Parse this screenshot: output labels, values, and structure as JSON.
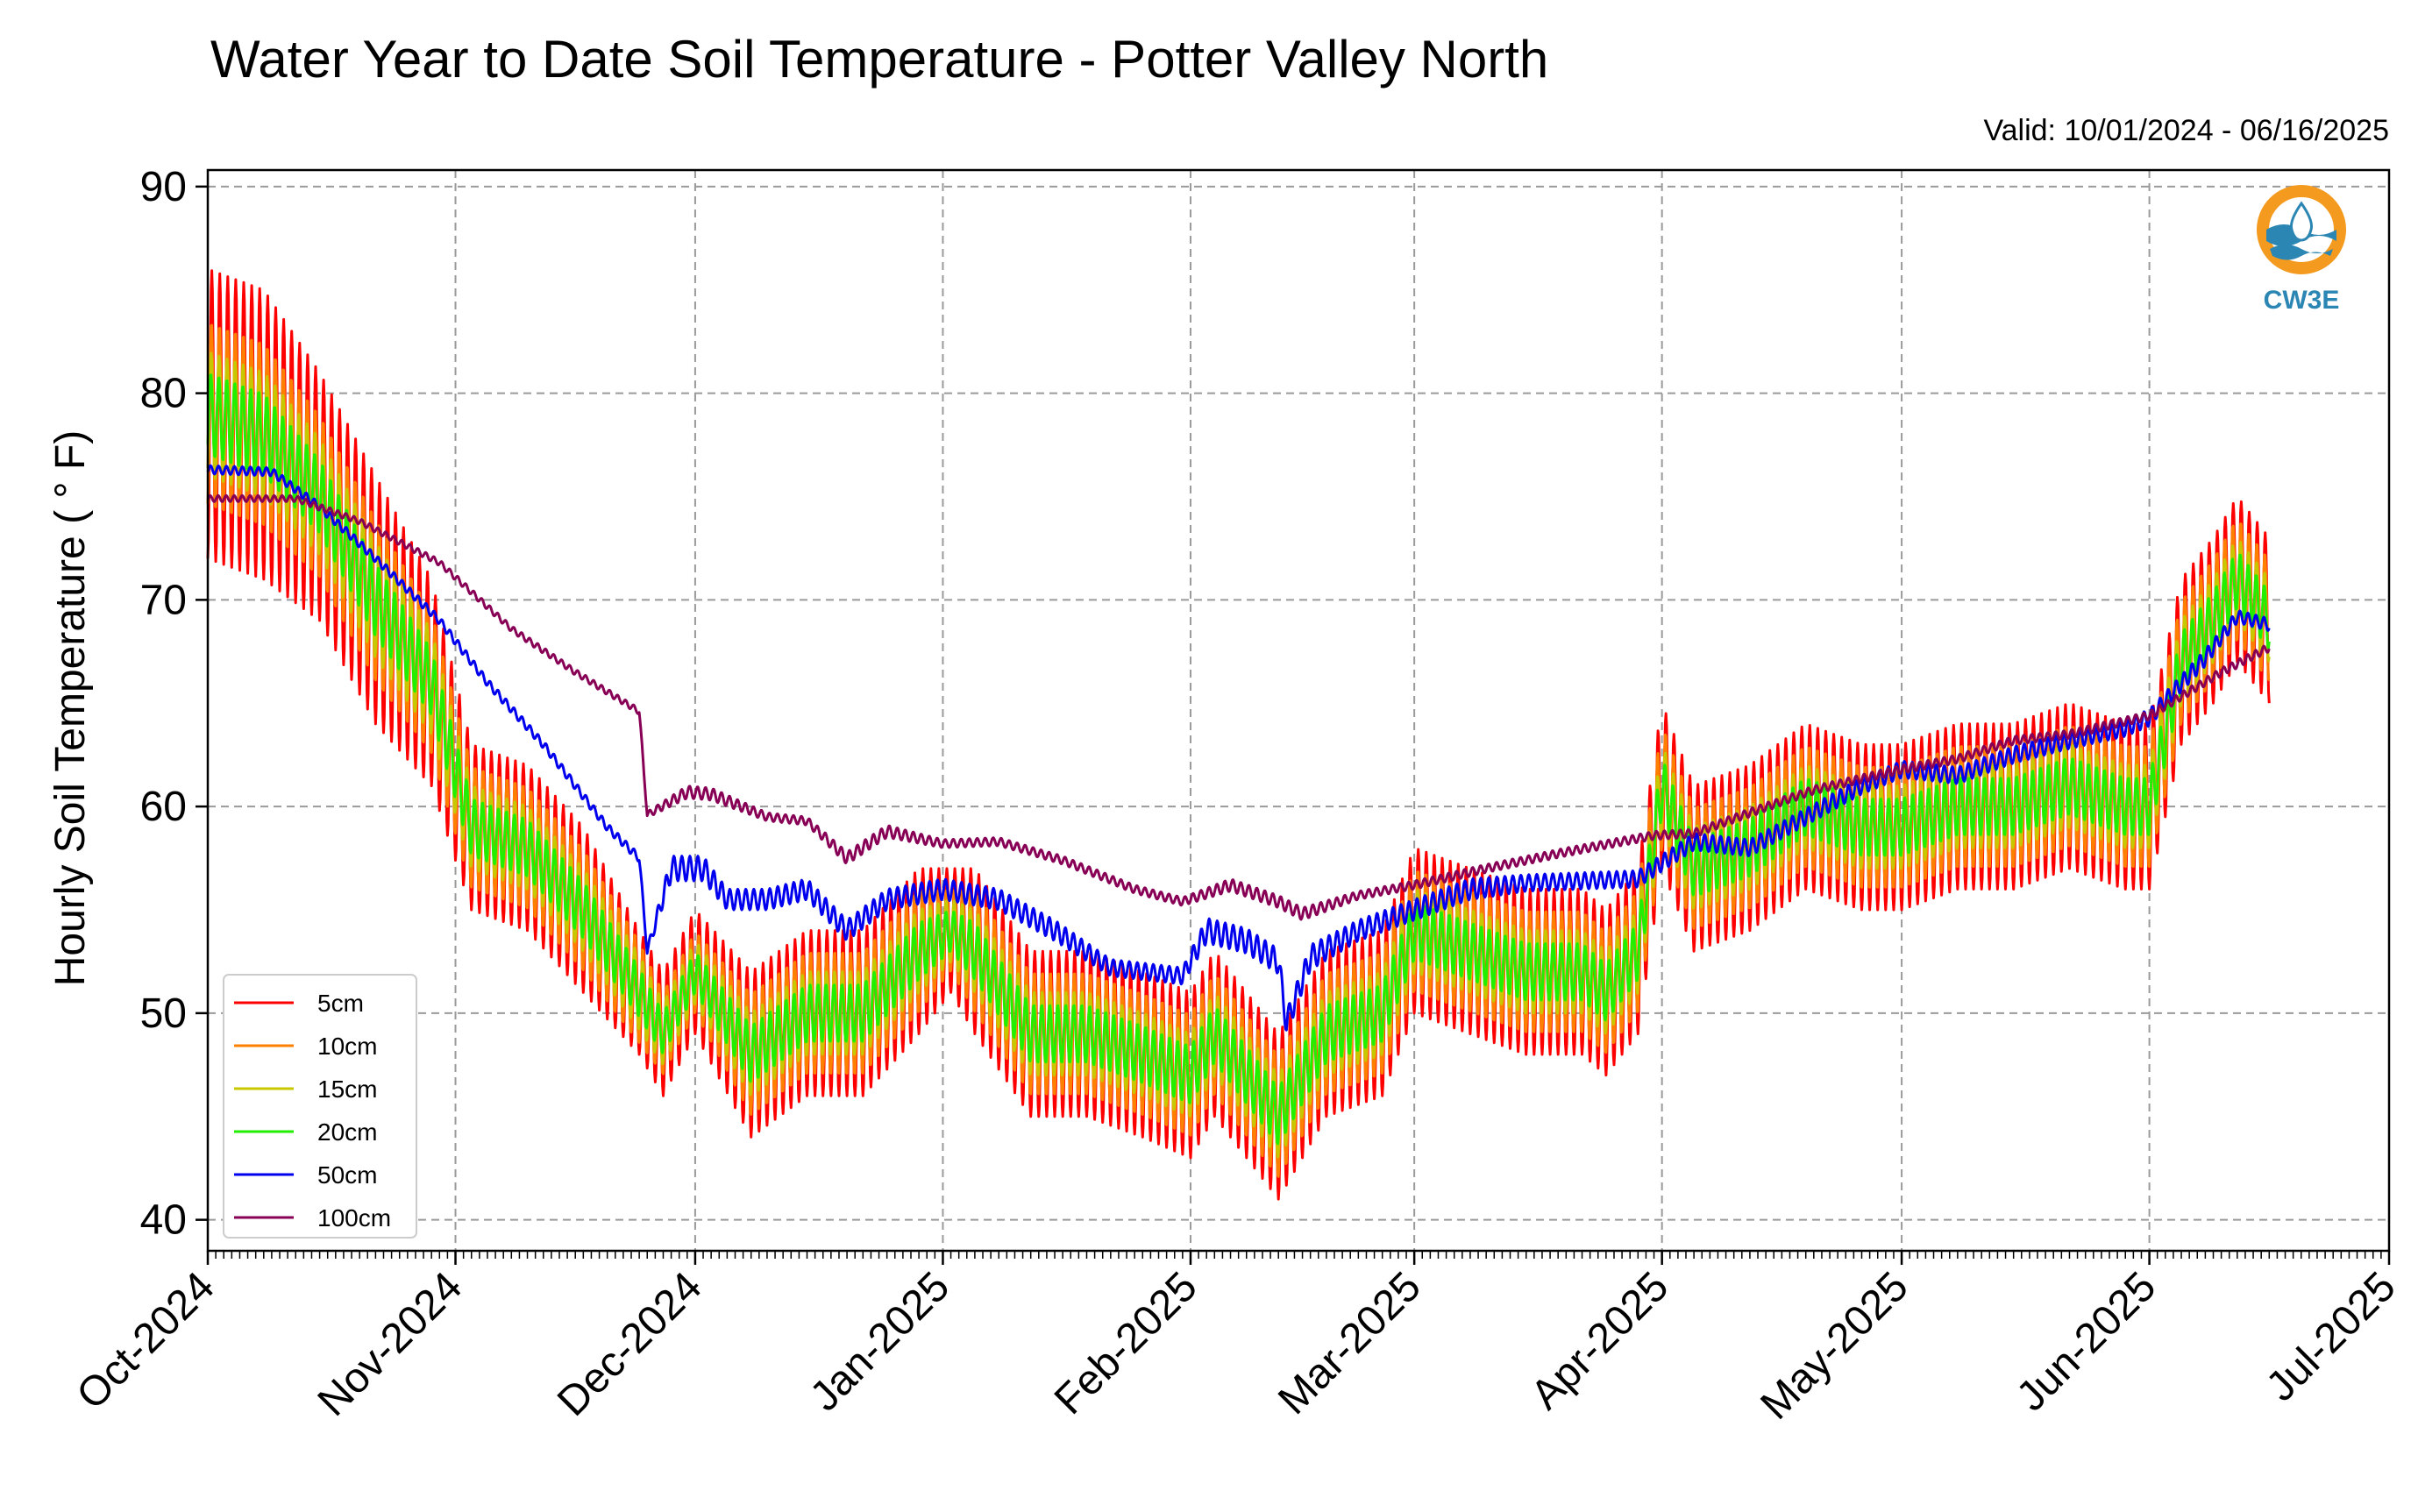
{
  "chart_data": {
    "type": "line",
    "title": "Water Year to Date Soil Temperature - Potter Valley North",
    "subtitle": "Valid: 10/01/2024 - 06/16/2025",
    "xlabel": "",
    "ylabel": "Hourly Soil Temperature ( ° F)",
    "xlim": [
      "2024-10-01",
      "2025-07-01"
    ],
    "ylim": [
      38.5,
      90.8
    ],
    "yticks": [
      40,
      50,
      60,
      70,
      80,
      90
    ],
    "xticks": [
      {
        "date": "2024-10-01",
        "label": "Oct-2024"
      },
      {
        "date": "2024-11-01",
        "label": "Nov-2024"
      },
      {
        "date": "2024-12-01",
        "label": "Dec-2024"
      },
      {
        "date": "2025-01-01",
        "label": "Jan-2025"
      },
      {
        "date": "2025-02-01",
        "label": "Feb-2025"
      },
      {
        "date": "2025-03-01",
        "label": "Mar-2025"
      },
      {
        "date": "2025-04-01",
        "label": "Apr-2025"
      },
      {
        "date": "2025-05-01",
        "label": "May-2025"
      },
      {
        "date": "2025-06-01",
        "label": "Jun-2025"
      },
      {
        "date": "2025-07-01",
        "label": "Jul-2025"
      }
    ],
    "grid": true,
    "legend_position": "lower-left",
    "logo_text": "CW3E",
    "logo_colors": {
      "orange": "#f39a1f",
      "blue": "#2b86b3"
    },
    "series": [
      {
        "name": "5cm",
        "color": "#ff0000",
        "x": [
          "2024-10-01",
          "2024-10-08",
          "2024-10-15",
          "2024-10-22",
          "2024-10-29",
          "2024-11-03",
          "2024-11-10",
          "2024-11-17",
          "2024-11-24",
          "2024-11-27",
          "2024-12-01",
          "2024-12-08",
          "2024-12-15",
          "2024-12-22",
          "2024-12-29",
          "2025-01-02",
          "2025-01-05",
          "2025-01-12",
          "2025-01-19",
          "2025-01-26",
          "2025-02-01",
          "2025-02-04",
          "2025-02-08",
          "2025-02-12",
          "2025-02-18",
          "2025-02-25",
          "2025-03-01",
          "2025-03-08",
          "2025-03-15",
          "2025-03-22",
          "2025-03-25",
          "2025-03-29",
          "2025-04-01",
          "2025-04-05",
          "2025-04-12",
          "2025-04-19",
          "2025-04-26",
          "2025-05-01",
          "2025-05-08",
          "2025-05-15",
          "2025-05-22",
          "2025-05-29",
          "2025-06-01",
          "2025-06-05",
          "2025-06-09",
          "2025-06-12",
          "2025-06-16"
        ],
        "mean": [
          79,
          78,
          75,
          70,
          66,
          59,
          58,
          55,
          51,
          49,
          52,
          48,
          50,
          50,
          53,
          54,
          53,
          49,
          49,
          48,
          47,
          49,
          47,
          45,
          49,
          50,
          54,
          53,
          52,
          52,
          51,
          53,
          61,
          57,
          58,
          60,
          59,
          59,
          60,
          60,
          61,
          60,
          60,
          67,
          69,
          71,
          69
        ],
        "amp": [
          7,
          7,
          6,
          6,
          5,
          4,
          4,
          4,
          3,
          3,
          3,
          4,
          4,
          4,
          4,
          3,
          4,
          4,
          4,
          4,
          4,
          4,
          4,
          4,
          4,
          4,
          4,
          4,
          4,
          4,
          4,
          4,
          4,
          4,
          4,
          4,
          4,
          4,
          4,
          4,
          4,
          4,
          4,
          4,
          4,
          4,
          4
        ]
      },
      {
        "name": "10cm",
        "color": "#ff8000",
        "x": [
          "2024-10-01",
          "2024-10-08",
          "2024-10-15",
          "2024-10-22",
          "2024-10-29",
          "2024-11-03",
          "2024-11-10",
          "2024-11-17",
          "2024-11-24",
          "2024-11-27",
          "2024-12-01",
          "2024-12-08",
          "2024-12-15",
          "2024-12-22",
          "2024-12-29",
          "2025-01-02",
          "2025-01-05",
          "2025-01-12",
          "2025-01-19",
          "2025-01-26",
          "2025-02-01",
          "2025-02-04",
          "2025-02-08",
          "2025-02-12",
          "2025-02-18",
          "2025-02-25",
          "2025-03-01",
          "2025-03-08",
          "2025-03-15",
          "2025-03-22",
          "2025-03-25",
          "2025-03-29",
          "2025-04-01",
          "2025-04-05",
          "2025-04-12",
          "2025-04-19",
          "2025-04-26",
          "2025-05-01",
          "2025-05-08",
          "2025-05-15",
          "2025-05-22",
          "2025-05-29",
          "2025-06-01",
          "2025-06-05",
          "2025-06-09",
          "2025-06-12",
          "2025-06-16"
        ],
        "mean": [
          79,
          78,
          75,
          70,
          66,
          59,
          58,
          55,
          51,
          49,
          52,
          48,
          50,
          50,
          53,
          54,
          53,
          49,
          49,
          48,
          47,
          49,
          47,
          45,
          49,
          50,
          54,
          53,
          52,
          52,
          51,
          53,
          61,
          57,
          58,
          60,
          59,
          59,
          60,
          60,
          61,
          60,
          60,
          67,
          69,
          71,
          69
        ],
        "amp": [
          4.5,
          4.5,
          4,
          4,
          3.5,
          3,
          3,
          3,
          2.5,
          2,
          2,
          3,
          3,
          3,
          3,
          2,
          3,
          3,
          3,
          3,
          3,
          3,
          3,
          3,
          3,
          3,
          3,
          3,
          3,
          3,
          3,
          3,
          3,
          3,
          3,
          3,
          3,
          3,
          3,
          3,
          3,
          3,
          3,
          3,
          3,
          3,
          3
        ]
      },
      {
        "name": "15cm",
        "color": "#c8c800",
        "x": [
          "2024-10-01",
          "2024-10-08",
          "2024-10-15",
          "2024-10-22",
          "2024-10-29",
          "2024-11-03",
          "2024-11-10",
          "2024-11-17",
          "2024-11-24",
          "2024-11-27",
          "2024-12-01",
          "2024-12-08",
          "2024-12-15",
          "2024-12-22",
          "2024-12-29",
          "2025-01-02",
          "2025-01-05",
          "2025-01-12",
          "2025-01-19",
          "2025-01-26",
          "2025-02-01",
          "2025-02-04",
          "2025-02-08",
          "2025-02-12",
          "2025-02-18",
          "2025-02-25",
          "2025-03-01",
          "2025-03-08",
          "2025-03-15",
          "2025-03-22",
          "2025-03-25",
          "2025-03-29",
          "2025-04-01",
          "2025-04-05",
          "2025-04-12",
          "2025-04-19",
          "2025-04-26",
          "2025-05-01",
          "2025-05-08",
          "2025-05-15",
          "2025-05-22",
          "2025-05-29",
          "2025-06-01",
          "2025-06-05",
          "2025-06-09",
          "2025-06-12",
          "2025-06-16"
        ],
        "mean": [
          79,
          78,
          75,
          70,
          66,
          59,
          58,
          55,
          51,
          49,
          52,
          48,
          50,
          50,
          53,
          54,
          53,
          49,
          49,
          48,
          47,
          49,
          47,
          45,
          49,
          50,
          54,
          53,
          52,
          52,
          51,
          53,
          61,
          57,
          58,
          60,
          59,
          59,
          60,
          60,
          61,
          60,
          60,
          67,
          69,
          71,
          69
        ],
        "amp": [
          3,
          3,
          2.8,
          2.8,
          2.5,
          2,
          2,
          2,
          1.8,
          1.5,
          1.5,
          2,
          2,
          2,
          2,
          1.5,
          2,
          2,
          2,
          2,
          2,
          2,
          2,
          2,
          2,
          2,
          2,
          2,
          2,
          2,
          2,
          2,
          2,
          2,
          2,
          2,
          2,
          2,
          2,
          2,
          2,
          2,
          2,
          2,
          2,
          2,
          2
        ]
      },
      {
        "name": "20cm",
        "color": "#22ee00",
        "x": [
          "2024-10-01",
          "2024-10-08",
          "2024-10-15",
          "2024-10-22",
          "2024-10-29",
          "2024-11-03",
          "2024-11-10",
          "2024-11-17",
          "2024-11-24",
          "2024-11-27",
          "2024-12-01",
          "2024-12-08",
          "2024-12-15",
          "2024-12-22",
          "2024-12-29",
          "2025-01-02",
          "2025-01-05",
          "2025-01-12",
          "2025-01-19",
          "2025-01-26",
          "2025-02-01",
          "2025-02-04",
          "2025-02-08",
          "2025-02-12",
          "2025-02-18",
          "2025-02-25",
          "2025-03-01",
          "2025-03-08",
          "2025-03-15",
          "2025-03-22",
          "2025-03-25",
          "2025-03-29",
          "2025-04-01",
          "2025-04-05",
          "2025-04-12",
          "2025-04-19",
          "2025-04-26",
          "2025-05-01",
          "2025-05-08",
          "2025-05-15",
          "2025-05-22",
          "2025-05-29",
          "2025-06-01",
          "2025-06-05",
          "2025-06-09",
          "2025-06-12",
          "2025-06-16"
        ],
        "mean": [
          79,
          78,
          75,
          70,
          66,
          59,
          58,
          55,
          51,
          49,
          52,
          48,
          50,
          50,
          53,
          54,
          53,
          49,
          49,
          48,
          47,
          49,
          47,
          45,
          49,
          50,
          54,
          53,
          52,
          52,
          51,
          53,
          61,
          57,
          58,
          60,
          59,
          59,
          60,
          60,
          61,
          60,
          60,
          67,
          69,
          71,
          69
        ],
        "amp": [
          2,
          2,
          1.8,
          1.8,
          1.6,
          1.4,
          1.4,
          1.4,
          1.2,
          1,
          1,
          1.4,
          1.4,
          1.4,
          1.4,
          1,
          1.4,
          1.4,
          1.4,
          1.4,
          1.4,
          1.4,
          1.4,
          1.4,
          1.4,
          1.4,
          1.4,
          1.4,
          1.4,
          1.4,
          1.4,
          1.4,
          1.4,
          1.4,
          1.4,
          1.4,
          1.4,
          1.4,
          1.4,
          1.4,
          1.4,
          1.4,
          1.4,
          1.4,
          1.4,
          1.4,
          1.4
        ]
      },
      {
        "name": "50cm",
        "color": "#0000ee",
        "x": [
          "2024-10-01",
          "2024-10-09",
          "2024-10-15",
          "2024-10-22",
          "2024-10-30",
          "2024-11-05",
          "2024-11-12",
          "2024-11-20",
          "2024-11-24",
          "2024-11-25",
          "2024-11-28",
          "2024-12-02",
          "2024-12-05",
          "2024-12-10",
          "2024-12-15",
          "2024-12-20",
          "2024-12-25",
          "2025-01-01",
          "2025-01-08",
          "2025-01-15",
          "2025-01-22",
          "2025-01-31",
          "2025-02-03",
          "2025-02-08",
          "2025-02-12",
          "2025-02-13",
          "2025-02-16",
          "2025-02-22",
          "2025-03-01",
          "2025-03-08",
          "2025-03-15",
          "2025-03-22",
          "2025-03-29",
          "2025-04-05",
          "2025-04-12",
          "2025-04-19",
          "2025-04-26",
          "2025-05-01",
          "2025-05-08",
          "2025-05-15",
          "2025-05-22",
          "2025-05-29",
          "2025-06-01",
          "2025-06-08",
          "2025-06-12",
          "2025-06-16"
        ],
        "mean": [
          76.3,
          76.2,
          74.5,
          72,
          69,
          66,
          63,
          59,
          57.5,
          53,
          57,
          57,
          55.5,
          55.5,
          56,
          54,
          55.5,
          56,
          55.5,
          54,
          52.2,
          51.8,
          54,
          53.5,
          52.5,
          49.5,
          52.7,
          54,
          55,
          56,
          56.3,
          56.4,
          56.5,
          58.3,
          58,
          59.5,
          61,
          61.8,
          61.5,
          62.5,
          63.2,
          63.8,
          64.3,
          67.2,
          69.2,
          68.8
        ],
        "amp": [
          0.2,
          0.2,
          0.2,
          0.2,
          0.2,
          0.2,
          0.2,
          0.2,
          0.2,
          0.2,
          0.6,
          0.6,
          0.5,
          0.5,
          0.5,
          0.5,
          0.5,
          0.5,
          0.5,
          0.5,
          0.4,
          0.4,
          0.6,
          0.6,
          0.6,
          0.6,
          0.6,
          0.5,
          0.5,
          0.5,
          0.4,
          0.4,
          0.4,
          0.4,
          0.4,
          0.4,
          0.4,
          0.4,
          0.4,
          0.4,
          0.4,
          0.4,
          0.4,
          0.4,
          0.3,
          0.3
        ]
      },
      {
        "name": "100cm",
        "color": "#880055",
        "x": [
          "2024-10-01",
          "2024-10-12",
          "2024-10-20",
          "2024-10-30",
          "2024-11-08",
          "2024-11-16",
          "2024-11-24",
          "2024-11-25",
          "2024-11-30",
          "2024-12-03",
          "2024-12-10",
          "2024-12-15",
          "2024-12-20",
          "2024-12-25",
          "2025-01-01",
          "2025-01-08",
          "2025-01-16",
          "2025-01-25",
          "2025-01-31",
          "2025-02-06",
          "2025-02-12",
          "2025-02-15",
          "2025-02-22",
          "2025-03-01",
          "2025-03-10",
          "2025-03-20",
          "2025-03-31",
          "2025-04-05",
          "2025-04-12",
          "2025-04-20",
          "2025-05-01",
          "2025-05-08",
          "2025-05-15",
          "2025-05-22",
          "2025-06-01",
          "2025-06-10",
          "2025-06-16"
        ],
        "mean": [
          74.9,
          74.9,
          73.8,
          71.8,
          68.6,
          66.5,
          64.6,
          59.6,
          60.7,
          60.6,
          59.5,
          59.3,
          57.5,
          58.8,
          58.2,
          58.3,
          57.4,
          56,
          55.4,
          56.2,
          55.4,
          54.8,
          55.7,
          56.2,
          57,
          57.8,
          58.6,
          58.7,
          59.7,
          60.8,
          61.8,
          62.3,
          63.2,
          63.5,
          64.4,
          66.5,
          67.7
        ],
        "amp": [
          0.15,
          0.15,
          0.15,
          0.15,
          0.15,
          0.15,
          0.15,
          0.15,
          0.3,
          0.3,
          0.2,
          0.2,
          0.3,
          0.3,
          0.2,
          0.2,
          0.2,
          0.2,
          0.2,
          0.3,
          0.3,
          0.3,
          0.2,
          0.2,
          0.2,
          0.2,
          0.2,
          0.2,
          0.2,
          0.2,
          0.2,
          0.2,
          0.2,
          0.2,
          0.2,
          0.2,
          0.2
        ]
      }
    ]
  }
}
